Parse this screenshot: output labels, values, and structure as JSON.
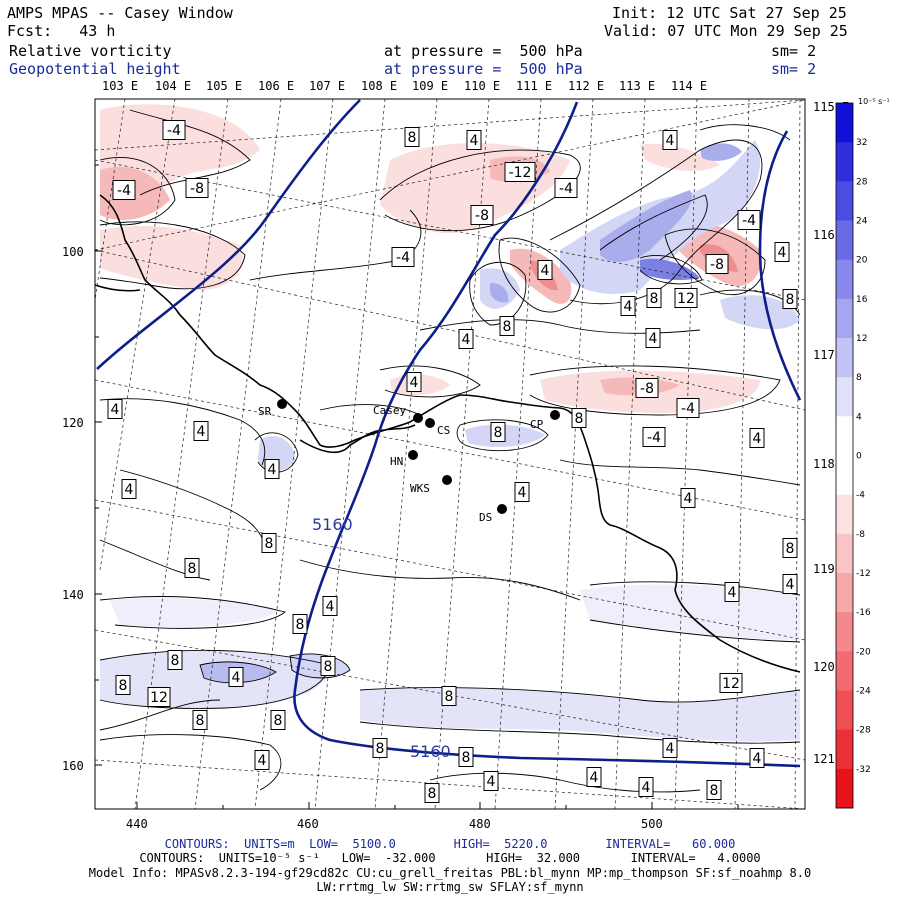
{
  "header": {
    "product": "AMPS MPAS -- Casey Window",
    "forecast": "Fcst:   43 h",
    "init": "Init: 12 UTC Sat 27 Sep 25",
    "valid": "Valid: 07 UTC Mon 29 Sep 25",
    "field1_name": "Relative vorticity",
    "field1_level": "at pressure =  500 hPa",
    "field1_sm": "sm= 2",
    "field2_name": "Geopotential height",
    "field2_level": "at pressure =  500 hPa",
    "field2_sm": "sm= 2"
  },
  "axes": {
    "top_lon_labels": [
      "103 E",
      "104 E",
      "105 E",
      "106 E",
      "107 E",
      "108 E",
      "109 E",
      "110 E",
      "111 E",
      "112 E",
      "113 E",
      "114 E"
    ],
    "right_lon_labels": [
      "115 E",
      "116 E",
      "117 E",
      "118 E",
      "119 E",
      "120 E",
      "121 E"
    ],
    "left_y_ticks": [
      "100",
      "120",
      "140",
      "160"
    ],
    "bottom_x_ticks": [
      "440",
      "460",
      "480",
      "500"
    ]
  },
  "colorbar": {
    "unit": "10⁻⁵ s⁻¹",
    "ticks": [
      "32",
      "28",
      "24",
      "20",
      "16",
      "12",
      "8",
      "4",
      "0",
      "-4",
      "-8",
      "-12",
      "-16",
      "-20",
      "-24",
      "-28",
      "-32"
    ],
    "colors": {
      "neg": "#e8131b",
      "pos": "#1010d8"
    }
  },
  "stations": [
    {
      "name": "SR"
    },
    {
      "name": "Casey"
    },
    {
      "name": "CS"
    },
    {
      "name": "CP"
    },
    {
      "name": "HN"
    },
    {
      "name": "WKS"
    },
    {
      "name": "DS"
    }
  ],
  "height_labels": [
    "5160",
    "5160"
  ],
  "vorticity_labels": [
    "-4",
    "-4",
    "-8",
    "-12",
    "-4",
    "-8",
    "-4",
    "-4",
    "8",
    "4",
    "4",
    "4",
    "8",
    "4",
    "8",
    "12",
    "-8",
    "4",
    "-8",
    "-4",
    "8",
    "4",
    "4",
    "8",
    "4",
    "4",
    "4",
    "-4",
    "8",
    "4",
    "4",
    "4",
    "4",
    "4",
    "8",
    "8",
    "8",
    "4",
    "4",
    "4",
    "8",
    "8",
    "8",
    "4",
    "8",
    "12",
    "12",
    "8",
    "8",
    "8",
    "8",
    "8",
    "4",
    "4",
    "4",
    "4",
    "4",
    "4",
    "8",
    "8",
    "8",
    "4",
    "4",
    "8"
  ],
  "footer": {
    "line1": "CONTOURS:  UNITS=m  LOW=  5100.0        HIGH=  5220.0        INTERVAL=   60.000",
    "line2": "CONTOURS:  UNITS=10⁻⁵ s⁻¹   LOW=  -32.000       HIGH=  32.000       INTERVAL=   4.0000",
    "line3": "Model Info: MPASv8.2.3-194-gf29cd82c CU:cu_grell_freitas PBL:bl_mynn MP:mp_thompson SF:sf_noahmp 8.0",
    "line4": "LW:rrtmg_lw SW:rrtmg_sw SFLAY:sf_mynn"
  }
}
